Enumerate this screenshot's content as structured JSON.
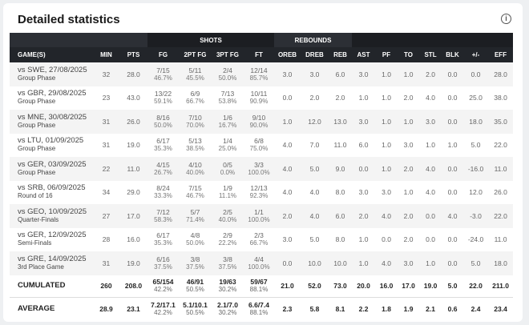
{
  "title": "Detailed statistics",
  "info_icon": "info-icon",
  "groups": {
    "shots": "SHOTS",
    "rebounds": "REBOUNDS"
  },
  "columns": [
    "GAME(S)",
    "MIN",
    "PTS",
    "FG",
    "2PT FG",
    "3PT FG",
    "FT",
    "OREB",
    "DREB",
    "REB",
    "AST",
    "PF",
    "TO",
    "STL",
    "BLK",
    "+/-",
    "EFF"
  ],
  "rows": [
    {
      "game": "vs SWE, 27/08/2025",
      "phase": "Group Phase",
      "min": "32",
      "pts": "28.0",
      "fg": [
        "7/15",
        "46.7%"
      ],
      "fg2": [
        "5/11",
        "45.5%"
      ],
      "fg3": [
        "2/4",
        "50.0%"
      ],
      "ft": [
        "12/14",
        "85.7%"
      ],
      "rest": [
        "3.0",
        "3.0",
        "6.0",
        "3.0",
        "1.0",
        "1.0",
        "2.0",
        "0.0",
        "0.0",
        "28.0"
      ]
    },
    {
      "game": "vs GBR, 29/08/2025",
      "phase": "Group Phase",
      "min": "23",
      "pts": "43.0",
      "fg": [
        "13/22",
        "59.1%"
      ],
      "fg2": [
        "6/9",
        "66.7%"
      ],
      "fg3": [
        "7/13",
        "53.8%"
      ],
      "ft": [
        "10/11",
        "90.9%"
      ],
      "rest": [
        "0.0",
        "2.0",
        "2.0",
        "1.0",
        "1.0",
        "2.0",
        "4.0",
        "0.0",
        "25.0",
        "38.0"
      ]
    },
    {
      "game": "vs MNE, 30/08/2025",
      "phase": "Group Phase",
      "min": "31",
      "pts": "26.0",
      "fg": [
        "8/16",
        "50.0%"
      ],
      "fg2": [
        "7/10",
        "70.0%"
      ],
      "fg3": [
        "1/6",
        "16.7%"
      ],
      "ft": [
        "9/10",
        "90.0%"
      ],
      "rest": [
        "1.0",
        "12.0",
        "13.0",
        "3.0",
        "1.0",
        "1.0",
        "3.0",
        "0.0",
        "18.0",
        "35.0"
      ]
    },
    {
      "game": "vs LTU, 01/09/2025",
      "phase": "Group Phase",
      "min": "31",
      "pts": "19.0",
      "fg": [
        "6/17",
        "35.3%"
      ],
      "fg2": [
        "5/13",
        "38.5%"
      ],
      "fg3": [
        "1/4",
        "25.0%"
      ],
      "ft": [
        "6/8",
        "75.0%"
      ],
      "rest": [
        "4.0",
        "7.0",
        "11.0",
        "6.0",
        "1.0",
        "3.0",
        "1.0",
        "1.0",
        "5.0",
        "22.0"
      ]
    },
    {
      "game": "vs GER, 03/09/2025",
      "phase": "Group Phase",
      "min": "22",
      "pts": "11.0",
      "fg": [
        "4/15",
        "26.7%"
      ],
      "fg2": [
        "4/10",
        "40.0%"
      ],
      "fg3": [
        "0/5",
        "0.0%"
      ],
      "ft": [
        "3/3",
        "100.0%"
      ],
      "rest": [
        "4.0",
        "5.0",
        "9.0",
        "0.0",
        "1.0",
        "2.0",
        "4.0",
        "0.0",
        "-16.0",
        "11.0"
      ]
    },
    {
      "game": "vs SRB, 06/09/2025",
      "phase": "Round of 16",
      "min": "34",
      "pts": "29.0",
      "fg": [
        "8/24",
        "33.3%"
      ],
      "fg2": [
        "7/15",
        "46.7%"
      ],
      "fg3": [
        "1/9",
        "11.1%"
      ],
      "ft": [
        "12/13",
        "92.3%"
      ],
      "rest": [
        "4.0",
        "4.0",
        "8.0",
        "3.0",
        "3.0",
        "1.0",
        "4.0",
        "0.0",
        "12.0",
        "26.0"
      ]
    },
    {
      "game": "vs GEO, 10/09/2025",
      "phase": "Quarter-Finals",
      "min": "27",
      "pts": "17.0",
      "fg": [
        "7/12",
        "58.3%"
      ],
      "fg2": [
        "5/7",
        "71.4%"
      ],
      "fg3": [
        "2/5",
        "40.0%"
      ],
      "ft": [
        "1/1",
        "100.0%"
      ],
      "rest": [
        "2.0",
        "4.0",
        "6.0",
        "2.0",
        "4.0",
        "2.0",
        "0.0",
        "4.0",
        "-3.0",
        "22.0"
      ]
    },
    {
      "game": "vs GER, 12/09/2025",
      "phase": "Semi-Finals",
      "min": "28",
      "pts": "16.0",
      "fg": [
        "6/17",
        "35.3%"
      ],
      "fg2": [
        "4/8",
        "50.0%"
      ],
      "fg3": [
        "2/9",
        "22.2%"
      ],
      "ft": [
        "2/3",
        "66.7%"
      ],
      "rest": [
        "3.0",
        "5.0",
        "8.0",
        "1.0",
        "0.0",
        "2.0",
        "0.0",
        "0.0",
        "-24.0",
        "11.0"
      ]
    },
    {
      "game": "vs GRE, 14/09/2025",
      "phase": "3rd Place Game",
      "min": "31",
      "pts": "19.0",
      "fg": [
        "6/16",
        "37.5%"
      ],
      "fg2": [
        "3/8",
        "37.5%"
      ],
      "fg3": [
        "3/8",
        "37.5%"
      ],
      "ft": [
        "4/4",
        "100.0%"
      ],
      "rest": [
        "0.0",
        "10.0",
        "10.0",
        "1.0",
        "4.0",
        "3.0",
        "1.0",
        "0.0",
        "5.0",
        "18.0"
      ]
    }
  ],
  "totals": [
    {
      "label": "CUMULATED",
      "min": "260",
      "pts": "208.0",
      "fg": [
        "65/154",
        "42.2%"
      ],
      "fg2": [
        "46/91",
        "50.5%"
      ],
      "fg3": [
        "19/63",
        "30.2%"
      ],
      "ft": [
        "59/67",
        "88.1%"
      ],
      "rest": [
        "21.0",
        "52.0",
        "73.0",
        "20.0",
        "16.0",
        "17.0",
        "19.0",
        "5.0",
        "22.0",
        "211.0"
      ]
    },
    {
      "label": "AVERAGE",
      "min": "28.9",
      "pts": "23.1",
      "fg": [
        "7.2/17.1",
        "42.2%"
      ],
      "fg2": [
        "5.1/10.1",
        "50.5%"
      ],
      "fg3": [
        "2.1/7.0",
        "30.2%"
      ],
      "ft": [
        "6.6/7.4",
        "88.1%"
      ],
      "rest": [
        "2.3",
        "5.8",
        "8.1",
        "2.2",
        "1.8",
        "1.9",
        "2.1",
        "0.6",
        "2.4",
        "23.4"
      ]
    }
  ]
}
